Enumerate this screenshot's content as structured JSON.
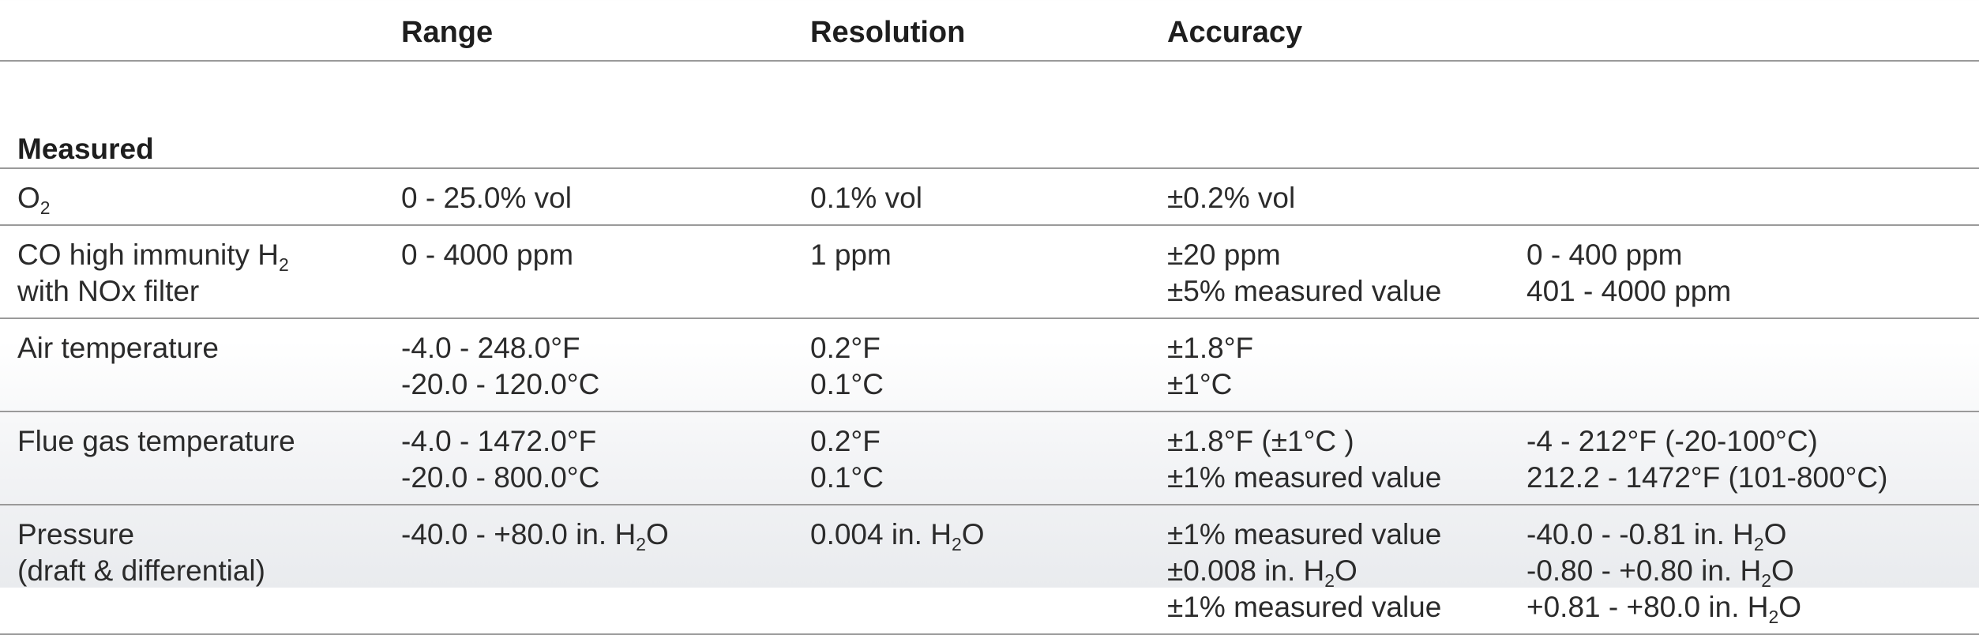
{
  "headers": [
    "",
    "Range",
    "Resolution",
    "Accuracy",
    ""
  ],
  "section": "Measured",
  "rows": [
    {
      "parameter": [
        "O₂"
      ],
      "range": [
        "0 - 25.0% vol"
      ],
      "resolution": [
        "0.1% vol"
      ],
      "accuracy": [
        "±0.2% vol"
      ],
      "condition": [
        ""
      ]
    },
    {
      "parameter": [
        "CO high immunity H₂",
        "with NOx filter"
      ],
      "range": [
        "0 - 4000 ppm"
      ],
      "resolution": [
        "1 ppm"
      ],
      "accuracy": [
        "±20 ppm",
        "±5% measured value"
      ],
      "condition": [
        "0 - 400 ppm",
        "401 - 4000 ppm"
      ]
    },
    {
      "parameter": [
        "Air temperature"
      ],
      "range": [
        "-4.0 - 248.0°F",
        "-20.0 - 120.0°C"
      ],
      "resolution": [
        "0.2°F",
        "0.1°C"
      ],
      "accuracy": [
        "±1.8°F",
        "±1°C"
      ],
      "condition": [
        ""
      ]
    },
    {
      "parameter": [
        "Flue gas temperature"
      ],
      "range": [
        "-4.0 - 1472.0°F",
        "-20.0 - 800.0°C"
      ],
      "resolution": [
        "0.2°F",
        "0.1°C"
      ],
      "accuracy": [
        "±1.8°F (±1°C )",
        "±1% measured value"
      ],
      "condition": [
        "-4 - 212°F (-20-100°C)",
        "212.2 - 1472°F (101-800°C)"
      ]
    },
    {
      "parameter": [
        "Pressure",
        "(draft & differential)"
      ],
      "range": [
        "-40.0 - +80.0 in. H₂O"
      ],
      "resolution": [
        "0.004 in. H₂O"
      ],
      "accuracy": [
        "±1% measured value",
        "±0.008 in. H₂O",
        "±1% measured value"
      ],
      "condition": [
        "-40.0 - -0.81 in. H₂O",
        "-0.80 - +0.80 in. H₂O",
        "+0.81 - +80.0 in. H₂O"
      ]
    }
  ]
}
